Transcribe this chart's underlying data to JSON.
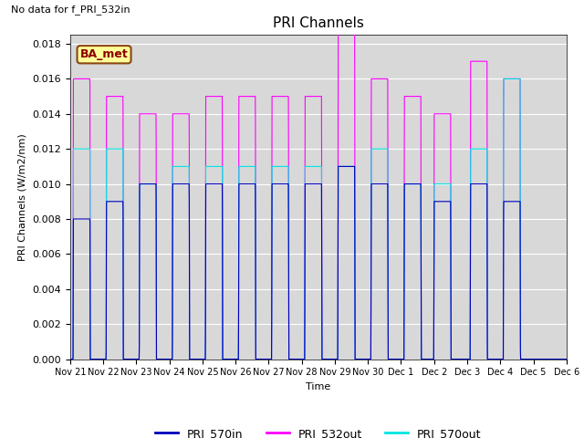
{
  "title": "PRI Channels",
  "no_data_text": "No data for f_PRI_532in",
  "ba_met_label": "BA_met",
  "ylabel": "PRI Channels (W/m2/nm)",
  "xlabel": "Time",
  "ylim": [
    0,
    0.0185
  ],
  "yticks": [
    0.0,
    0.002,
    0.004,
    0.006,
    0.008,
    0.01,
    0.012,
    0.014,
    0.016,
    0.018
  ],
  "xtick_labels": [
    "Nov 21",
    "Nov 22",
    "Nov 23",
    "Nov 24",
    "Nov 25",
    "Nov 26",
    "Nov 27",
    "Nov 28",
    "Nov 29",
    "Nov 30",
    "Dec 1",
    "Dec 2",
    "Dec 3",
    "Dec 4",
    "Dec 5",
    "Dec 6"
  ],
  "color_570in": "#0000bb",
  "color_532out": "#ff00ff",
  "color_570out": "#00e5e5",
  "background_color": "#d8d8d8",
  "legend_items": [
    "PRI_570in",
    "PRI_532out",
    "PRI_570out"
  ],
  "spikes": [
    {
      "day": 0.35,
      "p532": 0.016,
      "p570out": 0.012,
      "p570in": 0.008
    },
    {
      "day": 1.35,
      "p532": 0.015,
      "p570out": 0.012,
      "p570in": 0.009
    },
    {
      "day": 2.35,
      "p532": 0.014,
      "p570out": 0.01,
      "p570in": 0.01
    },
    {
      "day": 3.35,
      "p532": 0.014,
      "p570out": 0.011,
      "p570in": 0.01
    },
    {
      "day": 4.35,
      "p532": 0.015,
      "p570out": 0.011,
      "p570in": 0.01
    },
    {
      "day": 5.35,
      "p532": 0.015,
      "p570out": 0.011,
      "p570in": 0.01
    },
    {
      "day": 6.35,
      "p532": 0.015,
      "p570out": 0.011,
      "p570in": 0.01
    },
    {
      "day": 7.35,
      "p532": 0.015,
      "p570out": 0.011,
      "p570in": 0.01
    },
    {
      "day": 8.35,
      "p532": 0.019,
      "p570out": 0.011,
      "p570in": 0.011
    },
    {
      "day": 9.35,
      "p532": 0.016,
      "p570out": 0.012,
      "p570in": 0.01
    },
    {
      "day": 10.35,
      "p532": 0.015,
      "p570out": 0.01,
      "p570in": 0.01
    },
    {
      "day": 11.25,
      "p532": 0.014,
      "p570out": 0.01,
      "p570in": 0.009
    },
    {
      "day": 12.35,
      "p532": 0.017,
      "p570out": 0.012,
      "p570in": 0.01
    },
    {
      "day": 13.35,
      "p532": 0.016,
      "p570out": 0.016,
      "p570in": 0.009
    }
  ],
  "n_days": 15
}
